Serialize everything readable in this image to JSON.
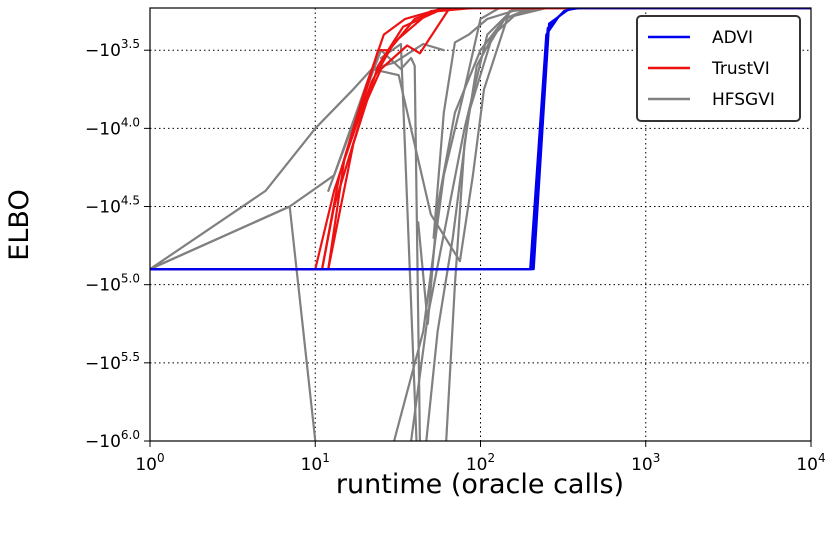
{
  "chart_data": {
    "type": "line",
    "title": "",
    "xlabel": "runtime (oracle calls)",
    "ylabel": "ELBO",
    "x_scale": "log",
    "y_scale": "symlog (negative, log magnitude)",
    "xlim": [
      1,
      10000
    ],
    "ylim_exponent": [
      6.0,
      3.23
    ],
    "grid": true,
    "grid_style": "dotted",
    "legend_position": "top-right",
    "x_ticks": [
      {
        "value": 1,
        "base": "10",
        "exp": "0"
      },
      {
        "value": 10,
        "base": "10",
        "exp": "1"
      },
      {
        "value": 100,
        "base": "10",
        "exp": "2"
      },
      {
        "value": 1000,
        "base": "10",
        "exp": "3"
      },
      {
        "value": 10000,
        "base": "10",
        "exp": "4"
      }
    ],
    "y_ticks": [
      {
        "exp_value": 3.5,
        "prefix": "−10",
        "exp": "3.5"
      },
      {
        "exp_value": 4.0,
        "prefix": "−10",
        "exp": "4.0"
      },
      {
        "exp_value": 4.5,
        "prefix": "−10",
        "exp": "4.5"
      },
      {
        "exp_value": 5.0,
        "prefix": "−10",
        "exp": "5.0"
      },
      {
        "exp_value": 5.5,
        "prefix": "−10",
        "exp": "5.5"
      },
      {
        "exp_value": 6.0,
        "prefix": "−10",
        "exp": "6.0"
      }
    ],
    "legend": [
      {
        "name": "ADVI",
        "color": "#0000ee"
      },
      {
        "name": "TrustVI",
        "color": "#ee1111"
      },
      {
        "name": "HFSGVI",
        "color": "#808080"
      }
    ],
    "series": [
      {
        "group": "HFSGVI",
        "color": "#808080",
        "points": [
          [
            1,
            4.9
          ],
          [
            5,
            4.4
          ],
          [
            10,
            4.0
          ],
          [
            17,
            3.75
          ],
          [
            22,
            3.62
          ],
          [
            30,
            3.58
          ],
          [
            45,
            3.46
          ],
          [
            60,
            3.5
          ]
        ]
      },
      {
        "group": "HFSGVI",
        "color": "#808080",
        "points": [
          [
            1,
            4.9
          ],
          [
            7,
            4.5
          ],
          [
            13,
            4.3
          ],
          [
            22,
            3.62
          ],
          [
            32,
            3.66
          ],
          [
            50,
            4.55
          ],
          [
            75,
            4.85
          ],
          [
            90,
            4.3
          ],
          [
            105,
            3.75
          ],
          [
            150,
            3.25
          ],
          [
            250,
            3.23
          ],
          [
            10000,
            3.23
          ]
        ]
      },
      {
        "group": "HFSGVI",
        "color": "#808080",
        "points": [
          [
            1,
            4.9
          ],
          [
            7,
            4.5
          ],
          [
            10,
            6.0
          ]
        ]
      },
      {
        "group": "HFSGVI",
        "color": "#808080",
        "points": [
          [
            12,
            4.4
          ],
          [
            18,
            3.9
          ],
          [
            25,
            3.5
          ],
          [
            33,
            3.62
          ],
          [
            38,
            3.55
          ],
          [
            40,
            3.6
          ],
          [
            43,
            6.0
          ]
        ]
      },
      {
        "group": "HFSGVI",
        "color": "#808080",
        "points": [
          [
            25,
            3.55
          ],
          [
            33,
            3.46
          ],
          [
            41,
            6.0
          ]
        ]
      },
      {
        "group": "HFSGVI",
        "color": "#808080",
        "points": [
          [
            30,
            6.0
          ],
          [
            45,
            5.3
          ],
          [
            60,
            4.3
          ],
          [
            78,
            3.8
          ],
          [
            100,
            3.3
          ],
          [
            130,
            3.23
          ],
          [
            10000,
            3.23
          ]
        ]
      },
      {
        "group": "HFSGVI",
        "color": "#808080",
        "points": [
          [
            38,
            6.0
          ],
          [
            48,
            5.2
          ],
          [
            62,
            4.6
          ],
          [
            80,
            4.0
          ],
          [
            110,
            3.4
          ],
          [
            160,
            3.23
          ],
          [
            10000,
            3.23
          ]
        ]
      },
      {
        "group": "HFSGVI",
        "color": "#808080",
        "points": [
          [
            47,
            6.0
          ],
          [
            55,
            5.3
          ],
          [
            68,
            4.7
          ],
          [
            85,
            3.9
          ],
          [
            115,
            3.45
          ],
          [
            140,
            3.3
          ],
          [
            200,
            3.23
          ],
          [
            10000,
            3.23
          ]
        ]
      },
      {
        "group": "HFSGVI",
        "color": "#808080",
        "points": [
          [
            62,
            6.0
          ],
          [
            70,
            5.0
          ],
          [
            80,
            4.1
          ],
          [
            95,
            3.6
          ],
          [
            120,
            3.4
          ],
          [
            160,
            3.28
          ],
          [
            250,
            3.23
          ],
          [
            10000,
            3.23
          ]
        ]
      },
      {
        "group": "HFSGVI",
        "color": "#808080",
        "points": [
          [
            42,
            4.6
          ],
          [
            48,
            5.25
          ],
          [
            55,
            4.5
          ],
          [
            70,
            3.9
          ],
          [
            100,
            3.5
          ],
          [
            140,
            3.3
          ],
          [
            220,
            3.23
          ],
          [
            10000,
            3.23
          ]
        ]
      },
      {
        "group": "HFSGVI",
        "color": "#808080",
        "points": [
          [
            52,
            4.7
          ],
          [
            60,
            3.9
          ],
          [
            70,
            3.45
          ],
          [
            85,
            3.4
          ],
          [
            110,
            3.3
          ],
          [
            180,
            3.23
          ],
          [
            10000,
            3.23
          ]
        ]
      },
      {
        "group": "TrustVI",
        "color": "#ee1111",
        "points": [
          [
            1,
            4.9
          ],
          [
            10,
            4.9
          ],
          [
            13,
            4.4
          ],
          [
            18,
            3.95
          ],
          [
            24,
            3.5
          ],
          [
            28,
            3.5
          ],
          [
            40,
            3.3
          ],
          [
            60,
            3.23
          ],
          [
            10000,
            3.23
          ]
        ]
      },
      {
        "group": "TrustVI",
        "color": "#ee1111",
        "points": [
          [
            1,
            4.9
          ],
          [
            11,
            4.9
          ],
          [
            14,
            4.3
          ],
          [
            20,
            3.75
          ],
          [
            26,
            3.4
          ],
          [
            35,
            3.3
          ],
          [
            60,
            3.23
          ],
          [
            10000,
            3.23
          ]
        ]
      },
      {
        "group": "TrustVI",
        "color": "#ee1111",
        "points": [
          [
            1,
            4.9
          ],
          [
            11,
            4.9
          ],
          [
            13,
            4.5
          ],
          [
            20,
            3.85
          ],
          [
            25,
            3.62
          ],
          [
            36,
            3.47
          ],
          [
            43,
            3.52
          ],
          [
            65,
            3.23
          ],
          [
            10000,
            3.23
          ]
        ]
      },
      {
        "group": "TrustVI",
        "color": "#ee1111",
        "points": [
          [
            1,
            4.9
          ],
          [
            12,
            4.9
          ],
          [
            15,
            4.2
          ],
          [
            22,
            3.7
          ],
          [
            30,
            3.45
          ],
          [
            50,
            3.25
          ],
          [
            80,
            3.23
          ],
          [
            10000,
            3.23
          ]
        ]
      },
      {
        "group": "TrustVI",
        "color": "#ee1111",
        "points": [
          [
            1,
            4.9
          ],
          [
            12,
            4.9
          ],
          [
            17,
            4.1
          ],
          [
            24,
            3.6
          ],
          [
            34,
            3.35
          ],
          [
            55,
            3.25
          ],
          [
            90,
            3.23
          ],
          [
            10000,
            3.23
          ]
        ]
      },
      {
        "group": "ADVI",
        "color": "#0000ee",
        "points": [
          [
            1,
            4.9
          ],
          [
            200,
            4.9
          ],
          [
            250,
            3.4
          ],
          [
            300,
            3.28
          ],
          [
            350,
            3.23
          ],
          [
            10000,
            3.23
          ]
        ]
      },
      {
        "group": "ADVI",
        "color": "#0000ee",
        "points": [
          [
            1,
            4.9
          ],
          [
            205,
            4.9
          ],
          [
            255,
            3.36
          ],
          [
            320,
            3.25
          ],
          [
            380,
            3.23
          ],
          [
            10000,
            3.23
          ]
        ]
      },
      {
        "group": "ADVI",
        "color": "#0000ee",
        "points": [
          [
            1,
            4.9
          ],
          [
            210,
            4.9
          ],
          [
            260,
            3.33
          ],
          [
            340,
            3.24
          ],
          [
            400,
            3.23
          ],
          [
            10000,
            3.23
          ]
        ]
      }
    ]
  }
}
